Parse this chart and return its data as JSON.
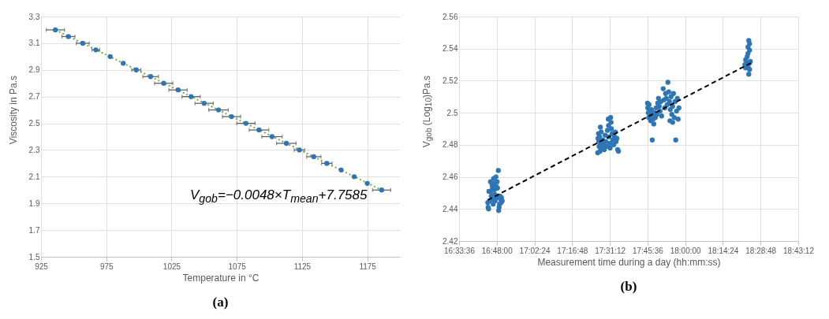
{
  "chart_data": [
    {
      "type": "scatter",
      "title": "(a)",
      "xlabel": "Temperature in °C",
      "ylabel": "Viscosity in Pa.s",
      "xlim": [
        925,
        1200
      ],
      "xticks": [
        925,
        975,
        1025,
        1075,
        1125,
        1175
      ],
      "ylim": [
        1.5,
        3.3
      ],
      "yticks": [
        1.5,
        1.7,
        1.9,
        2.1,
        2.3,
        2.5,
        2.7,
        2.9,
        3.1,
        3.3
      ],
      "grid": true,
      "marker": "circle",
      "annotations": [
        "V$_{gob}$=−0.0048×T$_{mean}$+7.7585"
      ],
      "series": [
        {
          "type": "line",
          "color": "#70ad47",
          "line_style": "dotted",
          "marker": "none",
          "x": [
            936,
            1186
          ],
          "values": [
            3.2,
            2.0
          ]
        },
        {
          "color": "#2e75b6",
          "x": [
            936,
            946,
            957,
            967,
            978,
            988,
            998,
            1009,
            1019,
            1030,
            1040,
            1050,
            1061,
            1071,
            1082,
            1092,
            1102,
            1113,
            1123,
            1134,
            1144,
            1155,
            1165,
            1175,
            1186
          ],
          "values": [
            3.2,
            3.15,
            3.1,
            3.05,
            3.0,
            2.95,
            2.9,
            2.85,
            2.8,
            2.75,
            2.7,
            2.65,
            2.6,
            2.55,
            2.5,
            2.45,
            2.4,
            2.35,
            2.3,
            2.25,
            2.2,
            2.15,
            2.1,
            2.05,
            2.0
          ],
          "xerrors": [
            7,
            5,
            5,
            3,
            null,
            null,
            3.5,
            6,
            7,
            7,
            7,
            7,
            7.5,
            7,
            7,
            7.5,
            7.8,
            7.5,
            4,
            5.5,
            4,
            null,
            null,
            null,
            7
          ]
        }
      ]
    },
    {
      "type": "scatter",
      "title": "(b)",
      "xlabel": "Measurement time during a day (hh:mm:ss)",
      "ylabel": "V$_{gob}$ (Log$_{10}$)Pa.s",
      "xlim": [
        16.56,
        18.72
      ],
      "xticks": [
        {
          "value": 16.56,
          "label": "16:33:36"
        },
        {
          "value": 16.8,
          "label": "16:48:00"
        },
        {
          "value": 17.04,
          "label": "17:02:24"
        },
        {
          "value": 17.28,
          "label": "17:16:48"
        },
        {
          "value": 17.52,
          "label": "17:31:12"
        },
        {
          "value": 17.76,
          "label": "17:45:36"
        },
        {
          "value": 18.0,
          "label": "18:00:00"
        },
        {
          "value": 18.24,
          "label": "18:14:24"
        },
        {
          "value": 18.48,
          "label": "18:28:48"
        },
        {
          "value": 18.72,
          "label": "18:43:12"
        }
      ],
      "ylim": [
        2.42,
        2.56
      ],
      "yticks": [
        2.42,
        2.44,
        2.46,
        2.48,
        2.5,
        2.52,
        2.54,
        2.56
      ],
      "grid": true,
      "marker": "circle",
      "series": [
        {
          "color": "#2e75b6",
          "x": [
            16.743,
            16.745,
            16.748,
            16.75,
            16.755,
            16.76,
            16.762,
            16.765,
            16.77,
            16.772,
            16.775,
            16.777,
            16.78,
            16.782,
            16.785,
            16.787,
            16.79,
            16.795,
            16.797,
            16.8,
            16.802,
            16.805,
            16.81,
            16.812,
            16.815,
            16.818,
            16.82,
            16.825,
            16.83,
            16.835,
            16.828,
            17.443,
            17.445,
            17.448,
            17.45,
            17.452,
            17.455,
            17.458,
            17.46,
            17.465,
            17.468,
            17.47,
            17.475,
            17.48,
            17.485,
            17.49,
            17.495,
            17.5,
            17.505,
            17.51,
            17.512,
            17.515,
            17.52,
            17.522,
            17.525,
            17.53,
            17.535,
            17.54,
            17.545,
            17.55,
            17.555,
            17.56,
            17.565,
            17.57,
            17.575,
            17.528,
            17.76,
            17.762,
            17.765,
            17.768,
            17.77,
            17.775,
            17.778,
            17.78,
            17.785,
            17.788,
            17.79,
            17.795,
            17.8,
            17.805,
            17.81,
            17.815,
            17.82,
            17.825,
            17.83,
            17.835,
            17.84,
            17.845,
            17.85,
            17.86,
            17.865,
            17.87,
            17.875,
            17.88,
            17.885,
            17.89,
            17.895,
            17.9,
            17.903,
            17.905,
            17.91,
            17.915,
            17.92,
            17.925,
            17.93,
            17.935,
            17.94,
            17.945,
            17.95,
            17.955,
            17.96,
            17.92,
            18.4,
            18.41,
            18.4,
            18.395,
            18.385,
            18.39,
            18.4,
            18.41,
            18.415,
            18.38,
            18.385,
            18.41,
            18.405,
            18.41,
            18.405
          ],
          "values": [
            2.444,
            2.441,
            2.44,
            2.451,
            2.445,
            2.457,
            2.451,
            2.448,
            2.455,
            2.453,
            2.446,
            2.443,
            2.459,
            2.456,
            2.452,
            2.449,
            2.445,
            2.46,
            2.454,
            2.447,
            2.457,
            2.453,
            2.464,
            2.439,
            2.441,
            2.443,
            2.448,
            2.446,
            2.447,
            2.445,
            2.444,
            2.475,
            2.484,
            2.487,
            2.482,
            2.479,
            2.485,
            2.476,
            2.491,
            2.488,
            2.481,
            2.478,
            2.483,
            2.48,
            2.477,
            2.486,
            2.482,
            2.479,
            2.489,
            2.496,
            2.492,
            2.485,
            2.481,
            2.478,
            2.497,
            2.49,
            2.487,
            2.483,
            2.48,
            2.485,
            2.488,
            2.482,
            2.484,
            2.477,
            2.476,
            2.494,
            2.506,
            2.503,
            2.5,
            2.497,
            2.505,
            2.501,
            2.498,
            2.495,
            2.502,
            2.499,
            2.483,
            2.496,
            2.493,
            2.5,
            2.497,
            2.503,
            2.499,
            2.506,
            2.509,
            2.504,
            2.501,
            2.507,
            2.498,
            2.515,
            2.508,
            2.503,
            2.512,
            2.509,
            2.505,
            2.519,
            2.513,
            2.507,
            2.495,
            2.502,
            2.51,
            2.499,
            2.504,
            2.512,
            2.497,
            2.507,
            2.483,
            2.501,
            2.509,
            2.496,
            2.503,
            2.494,
            2.541,
            2.539,
            2.537,
            2.535,
            2.533,
            2.531,
            2.529,
            2.531,
            2.532,
            2.53,
            2.528,
            2.527,
            2.545,
            2.543,
            2.524
          ]
        },
        {
          "type": "line",
          "color": "#000000",
          "line_style": "dashed",
          "marker": "none",
          "x": [
            16.743,
            18.418
          ],
          "values": [
            2.4456,
            2.531
          ]
        }
      ]
    }
  ]
}
